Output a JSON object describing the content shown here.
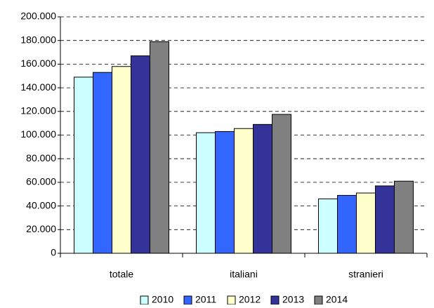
{
  "chart_data": {
    "type": "bar",
    "categories": [
      "totale",
      "italiani",
      "stranieri"
    ],
    "series": [
      {
        "name": "2010",
        "color": "#ccffff",
        "values": [
          149000,
          102000,
          46000
        ]
      },
      {
        "name": "2011",
        "color": "#3366ff",
        "values": [
          153000,
          103000,
          49000
        ]
      },
      {
        "name": "2012",
        "color": "#ffffcc",
        "values": [
          158000,
          105500,
          51000
        ]
      },
      {
        "name": "2013",
        "color": "#333399",
        "values": [
          167000,
          109000,
          57000
        ]
      },
      {
        "name": "2014",
        "color": "#808080",
        "values": [
          179000,
          117500,
          61000
        ]
      }
    ],
    "ylim": [
      0,
      200000
    ],
    "yticks": [
      0,
      {
        "value": 20000,
        "label": "20.000"
      },
      {
        "value": 40000,
        "label": "40.000"
      },
      {
        "value": 60000,
        "label": "60.000"
      },
      {
        "value": 80000,
        "label": "80.000"
      },
      {
        "value": 100000,
        "label": "100.000"
      },
      {
        "value": 120000,
        "label": "120.000"
      },
      {
        "value": 140000,
        "label": "140.000"
      },
      {
        "value": 160000,
        "label": "160.000"
      },
      {
        "value": 180000,
        "label": "180.000"
      },
      {
        "value": 200000,
        "label": "200.000"
      }
    ],
    "grid": true,
    "legend": "bottom"
  }
}
